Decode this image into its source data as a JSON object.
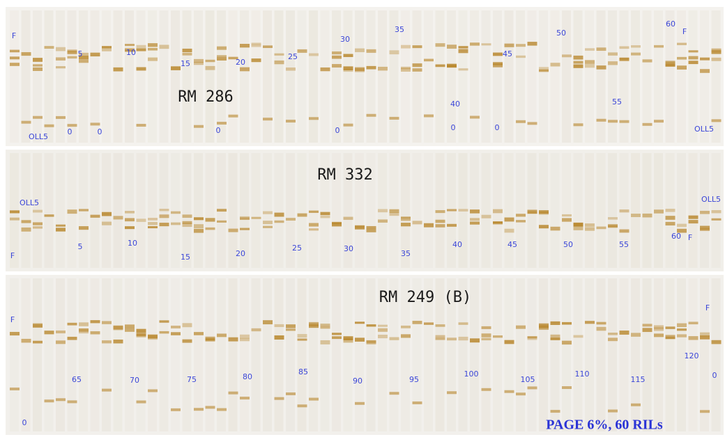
{
  "panels": [
    {
      "title": "RM 286",
      "labels": [
        "F",
        "5",
        "10",
        "15",
        "20",
        "25",
        "30",
        "35",
        "40",
        "45",
        "50",
        "55",
        "60",
        "F",
        "OLL5",
        "0",
        "0",
        "0",
        "0",
        "0",
        "0",
        "OLL5"
      ]
    },
    {
      "title": "RM 332",
      "labels": [
        "OLL5",
        "F",
        "5",
        "10",
        "15",
        "20",
        "25",
        "30",
        "35",
        "40",
        "45",
        "50",
        "55",
        "60",
        "F",
        "OLL5"
      ]
    },
    {
      "title": "RM 249 (B)",
      "labels": [
        "F",
        "65",
        "70",
        "75",
        "80",
        "85",
        "90",
        "95",
        "100",
        "105",
        "110",
        "115",
        "120",
        "F",
        "0",
        "0"
      ]
    }
  ],
  "footer": "PAGE 6%, 60 RILs"
}
